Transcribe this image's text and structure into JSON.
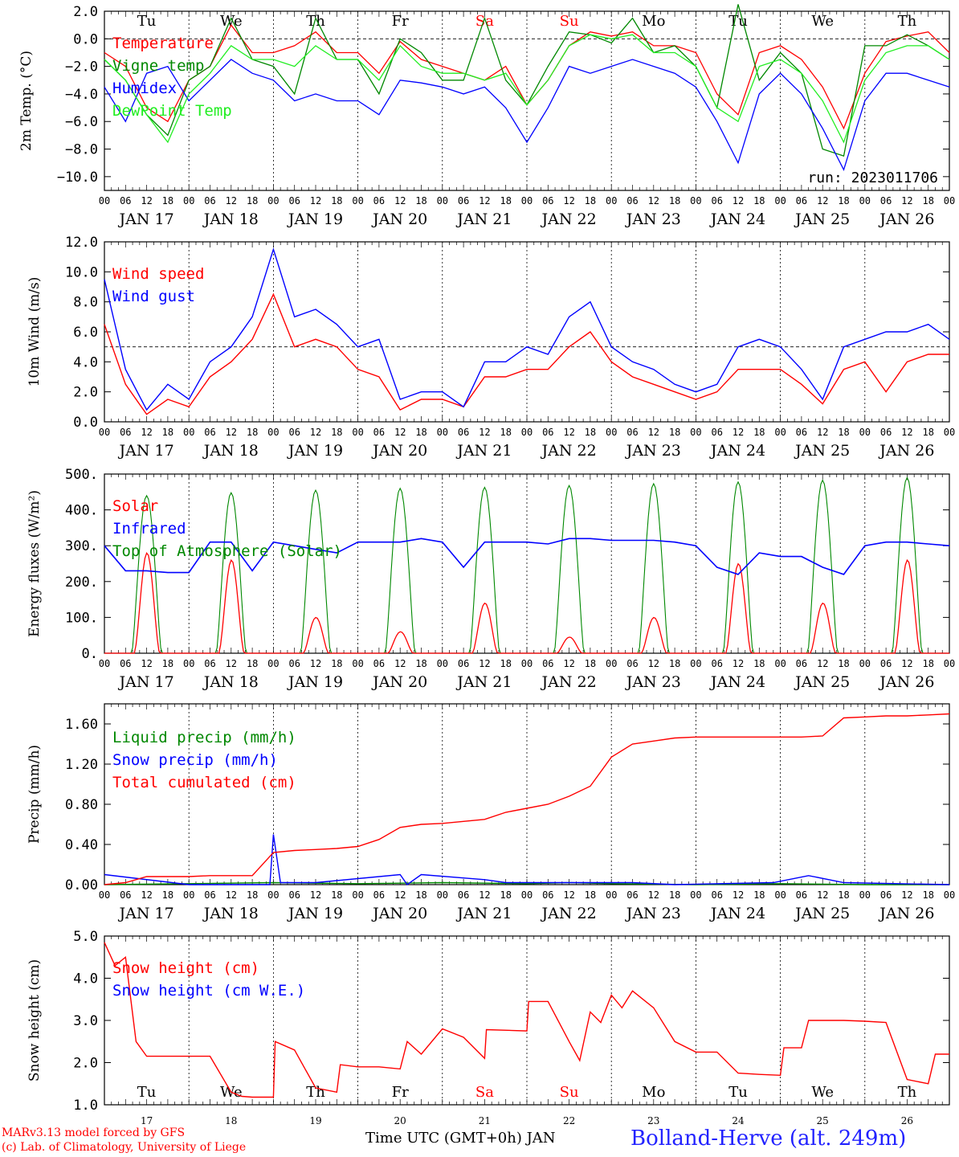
{
  "days": [
    {
      "date": "JAN 17",
      "day_of_month": "17",
      "weekday": "Tu",
      "weekend": false
    },
    {
      "date": "JAN 18",
      "day_of_month": "18",
      "weekday": "We",
      "weekend": false
    },
    {
      "date": "JAN 19",
      "day_of_month": "19",
      "weekday": "Th",
      "weekend": false
    },
    {
      "date": "JAN 20",
      "day_of_month": "20",
      "weekday": "Fr",
      "weekend": false
    },
    {
      "date": "JAN 21",
      "day_of_month": "21",
      "weekday": "Sa",
      "weekend": true
    },
    {
      "date": "JAN 22",
      "day_of_month": "22",
      "weekday": "Su",
      "weekend": true
    },
    {
      "date": "JAN 23",
      "day_of_month": "23",
      "weekday": "Mo",
      "weekend": false
    },
    {
      "date": "JAN 24",
      "day_of_month": "24",
      "weekday": "Tu",
      "weekend": false
    },
    {
      "date": "JAN 25",
      "day_of_month": "25",
      "weekday": "We",
      "weekend": false
    },
    {
      "date": "JAN 26",
      "day_of_month": "26",
      "weekday": "Th",
      "weekend": false
    }
  ],
  "hour_ticks": [
    "00",
    "06",
    "12",
    "18"
  ],
  "colors": {
    "red": "#ff0000",
    "green": "#008800",
    "blue": "#0000ff",
    "lightgreen": "#22ee22",
    "weekend": "#ff0000",
    "station": "#2222ff"
  },
  "footer": {
    "model": "MARv3.13 model forced by GFS",
    "copyright": "(c) Lab. of Climatology, University of Liege",
    "xlabel": "Time UTC (GMT+0h) JAN",
    "station": "Bolland-Herve (alt. 249m)"
  },
  "chart_data": [
    {
      "type": "line",
      "ylabel": "2m Temp. (°C)",
      "ylim": [
        -11,
        2
      ],
      "yticks": [
        2,
        0,
        -2,
        -4,
        -6,
        -8,
        -10
      ],
      "ytick_labels": [
        "2.0",
        "0.0",
        "−2.0",
        "−4.0",
        "−6.0",
        "−8.0",
        "−10.0"
      ],
      "ref_line": 0,
      "weekday_labels": "top",
      "annotation": "run: 2023011706",
      "x_hours": [
        0,
        6,
        12,
        18,
        24,
        30,
        36,
        42,
        48,
        54,
        60,
        66,
        72,
        78,
        84,
        90,
        96,
        102,
        108,
        114,
        120,
        126,
        132,
        138,
        144,
        150,
        156,
        162,
        168,
        174,
        180,
        186,
        192,
        198,
        204,
        210,
        216,
        222,
        228,
        234,
        240
      ],
      "series": [
        {
          "name": "Temperature",
          "color": "red",
          "values": [
            -1.0,
            -2.0,
            -5.0,
            -6.0,
            -3.0,
            -2.0,
            1.0,
            -1.0,
            -1.0,
            -0.5,
            0.5,
            -1.0,
            -1.0,
            -2.5,
            -0.2,
            -1.5,
            -2.0,
            -2.5,
            -3.0,
            -2.0,
            -4.8,
            -3.0,
            -0.5,
            0.5,
            0.2,
            0.5,
            -0.5,
            -0.5,
            -1.0,
            -4.0,
            -5.5,
            -1.0,
            -0.5,
            -1.5,
            -3.5,
            -6.5,
            -2.5,
            -0.2,
            0.2,
            0.5,
            -1.0
          ]
        },
        {
          "name": "Vigne temp",
          "color": "green",
          "values": [
            -1.5,
            -3.0,
            -5.5,
            -7.0,
            -3.0,
            -2.0,
            1.5,
            -1.5,
            -2.0,
            -4.0,
            1.5,
            -1.5,
            -1.5,
            -4.0,
            0.0,
            -1.0,
            -3.0,
            -3.0,
            1.5,
            -3.0,
            -4.8,
            -2.0,
            0.5,
            0.3,
            -0.3,
            1.5,
            -1.0,
            -0.5,
            -2.0,
            -5.0,
            2.5,
            -3.0,
            -1.0,
            -2.5,
            -8.0,
            -8.5,
            -0.5,
            -0.5,
            0.3,
            -0.5,
            -1.5
          ]
        },
        {
          "name": "Humidex",
          "color": "blue",
          "values": [
            -3.5,
            -6.0,
            -2.5,
            -2.0,
            -4.5,
            -3.0,
            -1.5,
            -2.5,
            -3.0,
            -4.5,
            -4.0,
            -4.5,
            -4.5,
            -5.5,
            -3.0,
            -3.2,
            -3.5,
            -4.0,
            -3.5,
            -5.0,
            -7.5,
            -5.0,
            -2.0,
            -2.5,
            -2.0,
            -1.5,
            -2.0,
            -2.5,
            -3.5,
            -6.0,
            -9.0,
            -4.0,
            -2.5,
            -4.0,
            -6.5,
            -9.5,
            -4.5,
            -2.5,
            -2.5,
            -3.0,
            -3.5
          ]
        },
        {
          "name": "DewPoint Temp",
          "color": "lightgreen",
          "values": [
            -1.5,
            -3.0,
            -5.5,
            -7.5,
            -4.0,
            -2.5,
            -0.5,
            -1.5,
            -1.5,
            -2.0,
            -0.5,
            -1.5,
            -1.5,
            -3.0,
            -0.5,
            -2.0,
            -2.5,
            -2.5,
            -3.0,
            -2.5,
            -4.8,
            -3.0,
            -0.5,
            0.3,
            0.0,
            0.3,
            -1.0,
            -1.0,
            -2.0,
            -5.0,
            -6.0,
            -2.0,
            -1.5,
            -2.5,
            -4.5,
            -7.5,
            -3.0,
            -1.0,
            -0.5,
            -0.5,
            -1.5
          ]
        }
      ]
    },
    {
      "type": "line",
      "ylabel": "10m Wind (m/s)",
      "ylim": [
        0,
        12
      ],
      "yticks": [
        0,
        2,
        4,
        6,
        8,
        10,
        12
      ],
      "ytick_labels": [
        "0.0",
        "2.0",
        "4.0",
        "6.0",
        "8.0",
        "10.0",
        "12.0"
      ],
      "ref_line": 5,
      "x_hours": [
        0,
        6,
        12,
        18,
        24,
        30,
        36,
        42,
        48,
        54,
        60,
        66,
        72,
        78,
        84,
        90,
        96,
        102,
        108,
        114,
        120,
        126,
        132,
        138,
        144,
        150,
        156,
        162,
        168,
        174,
        180,
        186,
        192,
        198,
        204,
        210,
        216,
        222,
        228,
        234,
        240
      ],
      "series": [
        {
          "name": "Wind speed",
          "color": "red",
          "values": [
            6.5,
            2.5,
            0.5,
            1.5,
            1.0,
            3.0,
            4.0,
            5.5,
            8.5,
            5.0,
            5.5,
            5.0,
            3.5,
            3.0,
            0.8,
            1.5,
            1.5,
            1.0,
            3.0,
            3.0,
            3.5,
            3.5,
            5.0,
            6.0,
            4.0,
            3.0,
            2.5,
            2.0,
            1.5,
            2.0,
            3.5,
            3.5,
            3.5,
            2.5,
            1.2,
            3.5,
            4.0,
            2.0,
            4.0,
            4.5,
            4.5
          ]
        },
        {
          "name": "Wind gust",
          "color": "blue",
          "values": [
            9.5,
            3.5,
            0.8,
            2.5,
            1.5,
            4.0,
            5.0,
            7.0,
            11.5,
            7.0,
            7.5,
            6.5,
            5.0,
            5.5,
            1.5,
            2.0,
            2.0,
            1.0,
            4.0,
            4.0,
            5.0,
            4.5,
            7.0,
            8.0,
            5.0,
            4.0,
            3.5,
            2.5,
            2.0,
            2.5,
            5.0,
            5.5,
            5.0,
            3.5,
            1.5,
            5.0,
            5.5,
            6.0,
            6.0,
            6.5,
            5.5
          ]
        }
      ]
    },
    {
      "type": "line",
      "ylabel": "Energy fluxes (W/m²)",
      "ylim": [
        0,
        500
      ],
      "yticks": [
        0,
        100,
        200,
        300,
        400,
        500
      ],
      "ytick_labels": [
        "0.",
        "100.",
        "200.",
        "300.",
        "400.",
        "500."
      ],
      "legend": [
        {
          "name": "Solar",
          "color": "red"
        },
        {
          "name": "Infrared",
          "color": "blue"
        },
        {
          "name": "Top of Atmosphere (Solar)",
          "color": "green"
        }
      ],
      "daily_peaks": {
        "toa": [
          440,
          448,
          455,
          460,
          463,
          468,
          473,
          478,
          483,
          490
        ],
        "solar": [
          280,
          260,
          100,
          60,
          140,
          45,
          100,
          250,
          140,
          260
        ]
      },
      "infrared": {
        "x_hours": [
          0,
          6,
          12,
          18,
          24,
          30,
          36,
          42,
          48,
          54,
          60,
          66,
          72,
          78,
          84,
          90,
          96,
          102,
          108,
          114,
          120,
          126,
          132,
          138,
          144,
          150,
          156,
          162,
          168,
          174,
          180,
          186,
          192,
          198,
          204,
          210,
          216,
          222,
          228,
          234,
          240
        ],
        "values": [
          300,
          230,
          230,
          225,
          225,
          310,
          310,
          230,
          310,
          300,
          290,
          280,
          310,
          310,
          310,
          320,
          310,
          240,
          310,
          310,
          310,
          305,
          320,
          320,
          315,
          315,
          315,
          310,
          300,
          240,
          220,
          280,
          270,
          270,
          240,
          220,
          300,
          310,
          310,
          305,
          300
        ]
      }
    },
    {
      "type": "line",
      "ylabel": "Precip (mm/h)",
      "ylim": [
        0,
        1.8
      ],
      "yticks": [
        0,
        0.4,
        0.8,
        1.2,
        1.6
      ],
      "ytick_labels": [
        "0.00",
        "0.40",
        "0.80",
        "1.20",
        "1.60"
      ],
      "series": [
        {
          "name": "Liquid precip (mm/h)",
          "color": "green",
          "x_hours": [
            0,
            48,
            72,
            96,
            120,
            132,
            144,
            168,
            192,
            216,
            240
          ],
          "values": [
            0.0,
            0.02,
            0.01,
            0.02,
            0.01,
            0.02,
            0.01,
            0.0,
            0.01,
            0.0,
            0.0
          ]
        },
        {
          "name": "Snow precip (mm/h)",
          "color": "blue",
          "x_hours": [
            0,
            24,
            47,
            48,
            50,
            60,
            84,
            86,
            90,
            108,
            114,
            144,
            150,
            162,
            190,
            200,
            210,
            240
          ],
          "values": [
            0.1,
            0.0,
            0.0,
            0.5,
            0.02,
            0.02,
            0.1,
            0.0,
            0.1,
            0.05,
            0.02,
            0.02,
            0.02,
            0.0,
            0.02,
            0.09,
            0.02,
            0.0
          ]
        },
        {
          "name": "Total cumulated (cm)",
          "color": "red",
          "x_hours": [
            0,
            6,
            12,
            18,
            24,
            30,
            36,
            42,
            48,
            54,
            60,
            66,
            72,
            78,
            84,
            90,
            96,
            102,
            108,
            114,
            120,
            126,
            132,
            138,
            144,
            150,
            156,
            162,
            168,
            174,
            180,
            186,
            192,
            198,
            204,
            210,
            216,
            222,
            228,
            234,
            240
          ],
          "values": [
            0.0,
            0.02,
            0.08,
            0.08,
            0.08,
            0.09,
            0.09,
            0.09,
            0.32,
            0.34,
            0.35,
            0.36,
            0.38,
            0.45,
            0.57,
            0.6,
            0.61,
            0.63,
            0.65,
            0.72,
            0.76,
            0.8,
            0.88,
            0.98,
            1.27,
            1.4,
            1.43,
            1.46,
            1.47,
            1.47,
            1.47,
            1.47,
            1.47,
            1.47,
            1.48,
            1.66,
            1.67,
            1.68,
            1.68,
            1.69,
            1.7
          ]
        }
      ]
    },
    {
      "type": "line",
      "ylabel": "Snow height (cm)",
      "ylim": [
        1,
        5
      ],
      "yticks": [
        1,
        2,
        3,
        4,
        5
      ],
      "ytick_labels": [
        "1.0",
        "2.0",
        "3.0",
        "4.0",
        "5.0"
      ],
      "weekday_labels": "bottom",
      "series": [
        {
          "name": "Snow height (cm)",
          "color": "red",
          "x_hours": [
            0,
            3,
            6,
            9,
            12,
            15,
            18,
            24,
            30,
            36,
            39,
            42,
            48,
            48.5,
            54,
            60,
            66,
            67,
            72,
            78,
            84,
            86,
            90,
            96,
            102,
            108,
            108.5,
            120,
            120.5,
            126,
            132,
            135,
            138,
            141,
            144,
            147,
            150,
            156,
            162,
            168,
            174,
            180,
            186,
            192,
            193,
            198,
            200,
            210,
            216,
            222,
            228,
            234,
            236,
            240
          ],
          "values": [
            4.85,
            4.3,
            4.5,
            2.5,
            2.15,
            2.15,
            2.15,
            2.15,
            2.15,
            1.3,
            1.2,
            1.18,
            1.18,
            2.5,
            2.3,
            1.4,
            1.3,
            1.95,
            1.9,
            1.9,
            1.85,
            2.5,
            2.2,
            2.8,
            2.6,
            2.1,
            2.78,
            2.75,
            3.45,
            3.45,
            2.5,
            2.05,
            3.2,
            2.95,
            3.6,
            3.3,
            3.7,
            3.3,
            2.5,
            2.25,
            2.25,
            1.75,
            1.72,
            1.7,
            2.35,
            2.35,
            3.0,
            3.0,
            2.98,
            2.95,
            1.6,
            1.5,
            2.2,
            2.2
          ]
        },
        {
          "name": "Snow height (cm W.E.)",
          "color": "blue",
          "x_hours": [],
          "values": []
        }
      ]
    }
  ]
}
